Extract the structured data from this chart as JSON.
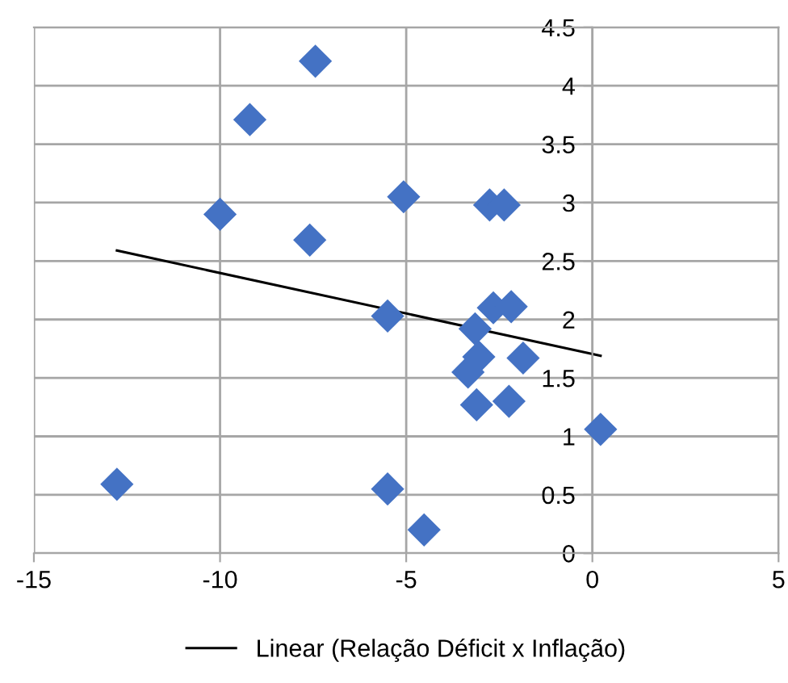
{
  "chart_data": {
    "type": "scatter",
    "xlim": [
      -15,
      5
    ],
    "xticks": [
      -15,
      -10,
      -5,
      0,
      5
    ],
    "ylim": [
      0,
      4.5
    ],
    "yticks": [
      0,
      0.5,
      1,
      1.5,
      2,
      2.5,
      3,
      3.5,
      4,
      4.5
    ],
    "grid": true,
    "legend": "bottom",
    "series": [
      {
        "marker": "diamond",
        "color": "#4472c4",
        "x": [
          -7.44,
          -9.2,
          -10.0,
          -7.59,
          -5.07,
          -2.76,
          -2.37,
          -2.66,
          -2.18,
          -5.5,
          -3.15,
          -3.05,
          -3.34,
          -1.86,
          -3.11,
          -2.24,
          0.22,
          -5.5,
          -4.52,
          -12.77
        ],
        "values": [
          4.21,
          3.71,
          2.9,
          2.68,
          3.05,
          2.98,
          2.98,
          2.1,
          2.11,
          2.03,
          1.92,
          1.68,
          1.55,
          1.67,
          1.27,
          1.3,
          1.06,
          0.55,
          0.2,
          0.59
        ]
      },
      {
        "type": "line",
        "name": "Linear (Relação Déficit x Inflação)",
        "color": "#000000",
        "marker": "none",
        "line_style": "solid",
        "x": [
          -12.77,
          0.22
        ],
        "values": [
          2.59,
          1.69
        ]
      }
    ]
  }
}
